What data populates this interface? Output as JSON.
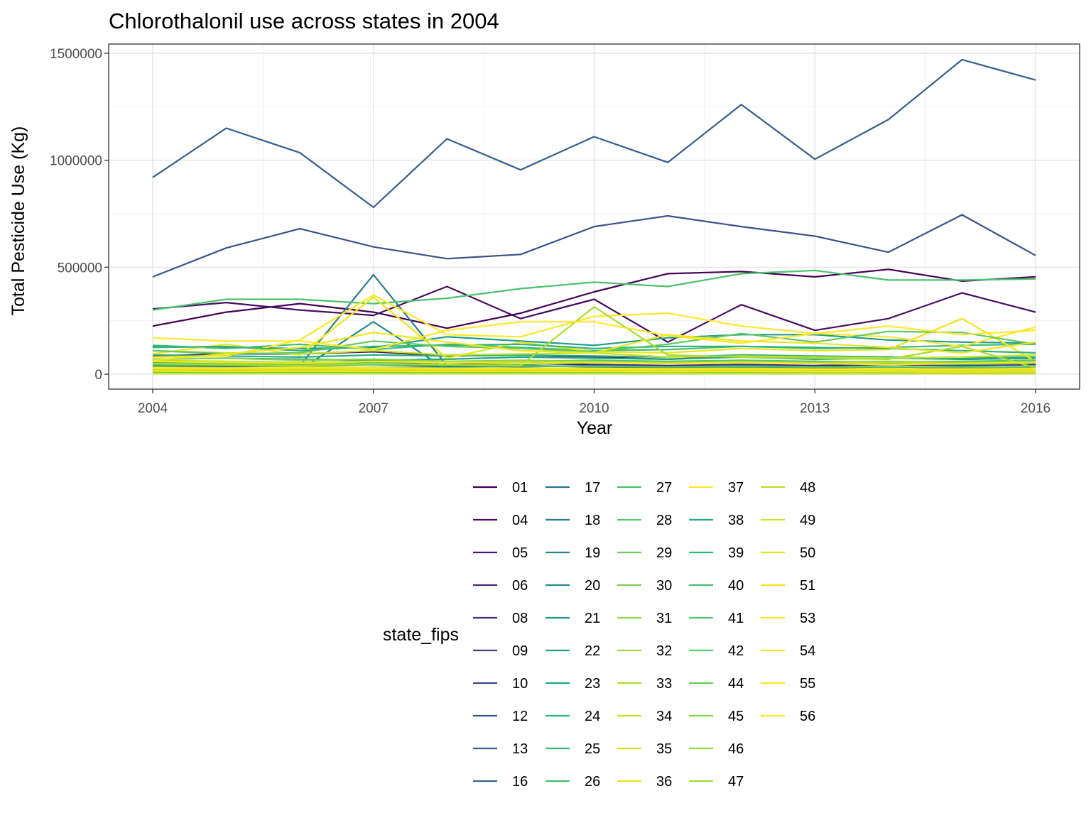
{
  "chart_data": {
    "type": "line",
    "title": "Chlorothalonil use across states in 2004",
    "xlabel": "Year",
    "ylabel": "Total Pesticide Use (Kg)",
    "x": [
      2004,
      2005,
      2006,
      2007,
      2008,
      2009,
      2010,
      2011,
      2012,
      2013,
      2014,
      2015,
      2016
    ],
    "xticks": [
      "2004",
      "2007",
      "2010",
      "2013",
      "2016"
    ],
    "yticks": [
      "0",
      "500000",
      "1000000",
      "1500000"
    ],
    "xlim": [
      2003.8,
      2016.2
    ],
    "ylim": [
      -70000,
      1500000
    ],
    "grid": true,
    "legend": {
      "title": "state_fips",
      "position": "bottom"
    },
    "series": [
      {
        "name": "01",
        "color": "#440154",
        "values": [
          225000,
          290000,
          330000,
          290000,
          215000,
          285000,
          385000,
          470000,
          480000,
          455000,
          490000,
          435000,
          455000
        ]
      },
      {
        "name": "04",
        "color": "#470D60",
        "values": [
          305000,
          335000,
          300000,
          275000,
          410000,
          260000,
          350000,
          150000,
          325000,
          205000,
          260000,
          380000,
          290000
        ]
      },
      {
        "name": "05",
        "color": "#48186A",
        "values": [
          85000,
          95000,
          95000,
          105000,
          85000,
          90000,
          80000,
          70000,
          85000,
          75000,
          80000,
          70000,
          75000
        ]
      },
      {
        "name": "06",
        "color": "#472576",
        "values": [
          50000,
          45000,
          50000,
          55000,
          45000,
          50000,
          45000,
          40000,
          45000,
          40000,
          45000,
          40000,
          45000
        ]
      },
      {
        "name": "08",
        "color": "#46307E",
        "values": [
          8000,
          7000,
          9000,
          8000,
          7000,
          8000,
          7000,
          6000,
          7000,
          6000,
          7000,
          6000,
          7000
        ]
      },
      {
        "name": "09",
        "color": "#433D84",
        "values": [
          40000,
          35000,
          40000,
          45000,
          35000,
          40000,
          35000,
          30000,
          35000,
          30000,
          35000,
          30000,
          35000
        ]
      },
      {
        "name": "10",
        "color": "#3F4889",
        "values": [
          60000,
          55000,
          50000,
          65000,
          55000,
          60000,
          55000,
          50000,
          55000,
          50000,
          45000,
          50000,
          55000
        ]
      },
      {
        "name": "12",
        "color": "#3A528B",
        "values": [
          455000,
          590000,
          680000,
          595000,
          540000,
          560000,
          690000,
          740000,
          690000,
          645000,
          570000,
          745000,
          555000
        ]
      },
      {
        "name": "13",
        "color": "#355E8D",
        "values": [
          920000,
          1150000,
          1035000,
          780000,
          1100000,
          955000,
          1110000,
          990000,
          1260000,
          1005000,
          1190000,
          1470000,
          1375000
        ]
      },
      {
        "name": "16",
        "color": "#31688E",
        "values": [
          15000,
          12000,
          14000,
          13000,
          12000,
          11000,
          12000,
          10000,
          11000,
          10000,
          11000,
          10000,
          12000
        ]
      },
      {
        "name": "17",
        "color": "#2D718E",
        "values": [
          30000,
          28000,
          32000,
          30000,
          26000,
          28000,
          27000,
          25000,
          26000,
          24000,
          25000,
          24000,
          26000
        ]
      },
      {
        "name": "18",
        "color": "#2A7B8E",
        "values": [
          40000,
          45000,
          40000,
          465000,
          40000,
          35000,
          40000,
          35000,
          40000,
          35000,
          35000,
          30000,
          35000
        ]
      },
      {
        "name": "19",
        "color": "#26828E",
        "values": [
          10000,
          9000,
          10000,
          9000,
          8000,
          9000,
          8000,
          7000,
          8000,
          7000,
          8000,
          7000,
          8000
        ]
      },
      {
        "name": "20",
        "color": "#228C8D",
        "values": [
          20000,
          18000,
          20000,
          245000,
          20000,
          18000,
          20000,
          17000,
          18000,
          16000,
          17000,
          16000,
          18000
        ]
      },
      {
        "name": "21",
        "color": "#1F958B",
        "values": [
          25000,
          22000,
          25000,
          23000,
          21000,
          22000,
          21000,
          20000,
          21000,
          19000,
          20000,
          19000,
          21000
        ]
      },
      {
        "name": "22",
        "color": "#1E9D89",
        "values": [
          130000,
          125000,
          120000,
          125000,
          175000,
          155000,
          135000,
          170000,
          185000,
          185000,
          160000,
          150000,
          145000
        ]
      },
      {
        "name": "23",
        "color": "#21A685",
        "values": [
          70000,
          75000,
          70000,
          65000,
          70000,
          80000,
          75000,
          70000,
          80000,
          70000,
          75000,
          70000,
          75000
        ]
      },
      {
        "name": "24",
        "color": "#28AE80",
        "values": [
          90000,
          85000,
          80000,
          90000,
          85000,
          90000,
          85000,
          80000,
          90000,
          85000,
          80000,
          75000,
          80000
        ]
      },
      {
        "name": "25",
        "color": "#32B67A",
        "values": [
          55000,
          50000,
          45000,
          55000,
          60000,
          45000,
          55000,
          50000,
          55000,
          60000,
          50000,
          45000,
          50000
        ]
      },
      {
        "name": "26",
        "color": "#3FBC73",
        "values": [
          135000,
          120000,
          140000,
          115000,
          140000,
          125000,
          110000,
          115000,
          130000,
          120000,
          125000,
          135000,
          140000
        ]
      },
      {
        "name": "27",
        "color": "#4AC16D",
        "values": [
          300000,
          350000,
          350000,
          330000,
          355000,
          400000,
          430000,
          410000,
          470000,
          485000,
          440000,
          440000,
          445000
        ]
      },
      {
        "name": "28",
        "color": "#58C765",
        "values": [
          45000,
          40000,
          35000,
          45000,
          40000,
          38000,
          36000,
          34000,
          36000,
          33000,
          35000,
          32000,
          34000
        ]
      },
      {
        "name": "29",
        "color": "#69CD5B",
        "values": [
          35000,
          30000,
          28000,
          32000,
          30000,
          28000,
          27000,
          26000,
          28000,
          25000,
          26000,
          24000,
          26000
        ]
      },
      {
        "name": "30",
        "color": "#7AD151",
        "values": [
          5000,
          4000,
          5000,
          4000,
          4000,
          5000,
          4000,
          4000,
          4000,
          3000,
          4000,
          3000,
          4000
        ]
      },
      {
        "name": "31",
        "color": "#8ED645",
        "values": [
          15000,
          14000,
          15000,
          14000,
          13000,
          14000,
          13000,
          12000,
          13000,
          12000,
          12000,
          11000,
          12000
        ]
      },
      {
        "name": "32",
        "color": "#A2DA37",
        "values": [
          3000,
          3000,
          3000,
          3000,
          2000,
          3000,
          2000,
          2000,
          2000,
          2000,
          2000,
          2000,
          2000
        ]
      },
      {
        "name": "33",
        "color": "#B5DD2B",
        "values": [
          20000,
          18000,
          20000,
          19000,
          17000,
          18000,
          17000,
          16000,
          17000,
          15000,
          16000,
          15000,
          16000
        ]
      },
      {
        "name": "34",
        "color": "#C8E020",
        "values": [
          110000,
          100000,
          95000,
          110000,
          90000,
          95000,
          100000,
          80000,
          85000,
          80000,
          75000,
          80000,
          90000
        ]
      },
      {
        "name": "35",
        "color": "#DAE319",
        "values": [
          10000,
          9000,
          10000,
          9000,
          8000,
          9000,
          8000,
          7000,
          8000,
          7000,
          8000,
          7000,
          8000
        ]
      },
      {
        "name": "36",
        "color": "#ECE51B",
        "values": [
          95000,
          140000,
          90000,
          360000,
          75000,
          150000,
          105000,
          100000,
          120000,
          110000,
          115000,
          260000,
          60000
        ]
      },
      {
        "name": "37",
        "color": "#FDE725",
        "values": [
          80000,
          85000,
          160000,
          370000,
          185000,
          175000,
          270000,
          285000,
          225000,
          190000,
          175000,
          130000,
          220000
        ]
      },
      {
        "name": "38",
        "color": "#22A884",
        "values": [
          5000,
          4000,
          5000,
          4000,
          4000,
          5000,
          4000,
          3000,
          4000,
          3000,
          4000,
          3000,
          4000
        ]
      },
      {
        "name": "39",
        "color": "#2FB47C",
        "values": [
          125000,
          130000,
          110000,
          130000,
          135000,
          140000,
          120000,
          130000,
          130000,
          125000,
          120000,
          110000,
          100000
        ]
      },
      {
        "name": "40",
        "color": "#43BF71",
        "values": [
          15000,
          14000,
          15000,
          14000,
          13000,
          14000,
          13000,
          12000,
          13000,
          12000,
          12000,
          11000,
          12000
        ]
      },
      {
        "name": "41",
        "color": "#51C56A",
        "values": [
          60000,
          55000,
          50000,
          60000,
          55000,
          60000,
          65000,
          60000,
          65000,
          60000,
          55000,
          60000,
          65000
        ]
      },
      {
        "name": "42",
        "color": "#5EC962",
        "values": [
          110000,
          95000,
          100000,
          155000,
          130000,
          120000,
          105000,
          140000,
          190000,
          150000,
          200000,
          195000,
          140000
        ]
      },
      {
        "name": "44",
        "color": "#6CCD5A",
        "values": [
          8000,
          7000,
          8000,
          7000,
          6000,
          7000,
          6000,
          5000,
          6000,
          5000,
          6000,
          5000,
          6000
        ]
      },
      {
        "name": "45",
        "color": "#7FD34E",
        "values": [
          70000,
          75000,
          65000,
          70000,
          60000,
          65000,
          60000,
          55000,
          60000,
          55000,
          60000,
          55000,
          60000
        ]
      },
      {
        "name": "46",
        "color": "#93D741",
        "values": [
          4000,
          4000,
          4000,
          3000,
          3000,
          4000,
          3000,
          3000,
          3000,
          3000,
          3000,
          3000,
          3000
        ]
      },
      {
        "name": "47",
        "color": "#A8DB34",
        "values": [
          50000,
          45000,
          40000,
          50000,
          45000,
          40000,
          315000,
          90000,
          80000,
          75000,
          70000,
          130000,
          30000
        ]
      },
      {
        "name": "48",
        "color": "#BADE28",
        "values": [
          65000,
          60000,
          55000,
          60000,
          55000,
          60000,
          55000,
          50000,
          55000,
          50000,
          55000,
          50000,
          55000
        ]
      },
      {
        "name": "49",
        "color": "#CDE11D",
        "values": [
          3000,
          3000,
          3000,
          3000,
          2000,
          3000,
          2000,
          2000,
          2000,
          2000,
          2000,
          2000,
          2000
        ]
      },
      {
        "name": "50",
        "color": "#DFE318",
        "values": [
          25000,
          22000,
          25000,
          23000,
          21000,
          22000,
          21000,
          20000,
          21000,
          19000,
          20000,
          19000,
          21000
        ]
      },
      {
        "name": "51",
        "color": "#EFE51C",
        "values": [
          65000,
          95000,
          125000,
          195000,
          150000,
          110000,
          100000,
          185000,
          155000,
          145000,
          125000,
          100000,
          150000
        ]
      },
      {
        "name": "53",
        "color": "#F5E61F",
        "values": [
          60000,
          55000,
          50000,
          60000,
          55000,
          50000,
          55000,
          50000,
          55000,
          50000,
          45000,
          50000,
          55000
        ]
      },
      {
        "name": "54",
        "color": "#F9E621",
        "values": [
          15000,
          14000,
          15000,
          14000,
          13000,
          14000,
          13000,
          12000,
          13000,
          12000,
          12000,
          11000,
          12000
        ]
      },
      {
        "name": "55",
        "color": "#FBE723",
        "values": [
          30000,
          28000,
          32000,
          30000,
          26000,
          28000,
          27000,
          25000,
          26000,
          24000,
          25000,
          24000,
          26000
        ]
      },
      {
        "name": "56",
        "color": "#FDE725",
        "values": [
          170000,
          155000,
          155000,
          115000,
          205000,
          245000,
          245000,
          180000,
          145000,
          190000,
          225000,
          185000,
          205000
        ]
      }
    ]
  }
}
